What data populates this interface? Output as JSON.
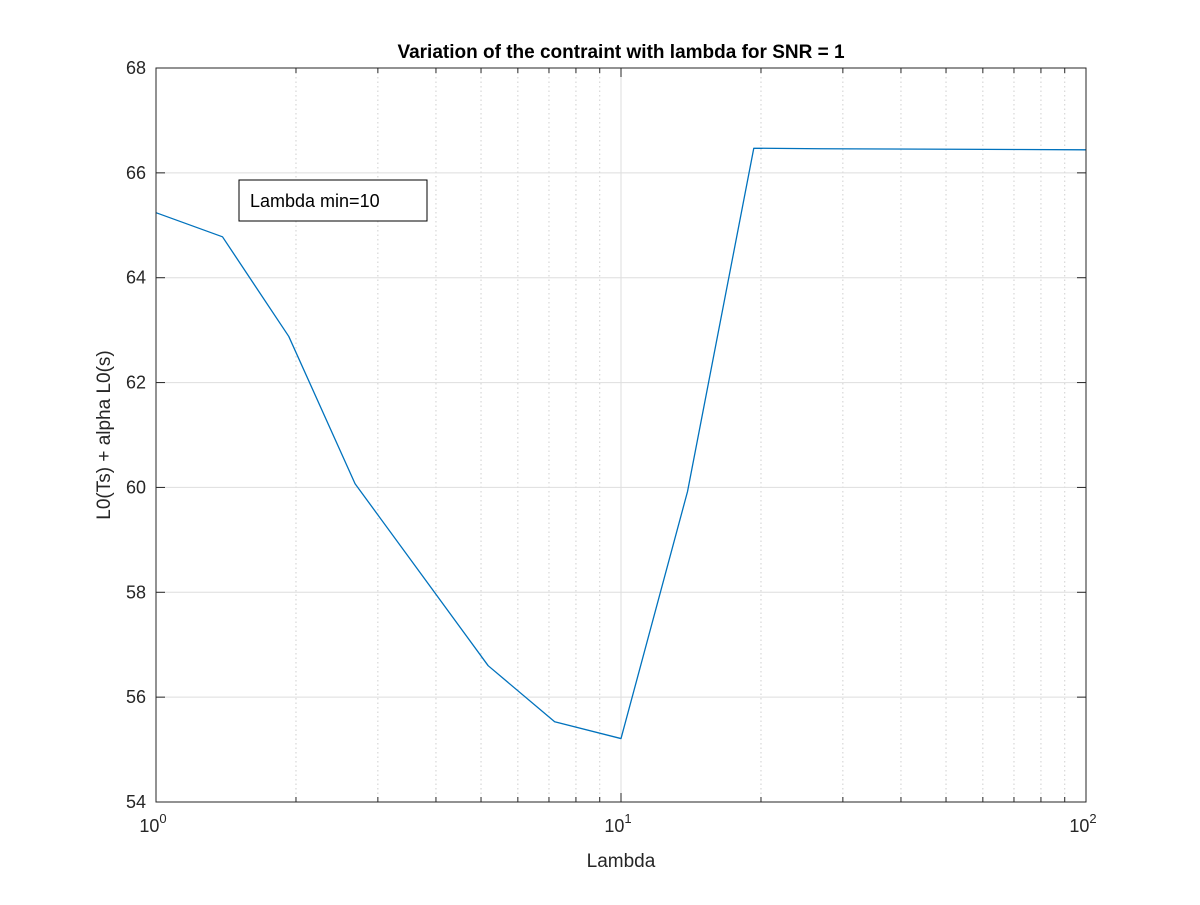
{
  "chart_data": {
    "type": "line",
    "title": "Variation of the contraint with lambda for SNR = 1",
    "xlabel": "Lambda",
    "ylabel": "L0(Ts) + alpha L0(s)",
    "xscale": "log",
    "xlim": [
      1,
      100
    ],
    "ylim": [
      54,
      68
    ],
    "grid": "on (major and minor on x)",
    "x_ticks": [
      {
        "base": "10",
        "exp": "0"
      },
      {
        "base": "10",
        "exp": "1"
      },
      {
        "base": "10",
        "exp": "2"
      }
    ],
    "y_ticks": [
      "54",
      "56",
      "58",
      "60",
      "62",
      "64",
      "66",
      "68"
    ],
    "y_tick_values": [
      54,
      56,
      58,
      60,
      62,
      64,
      66,
      68
    ],
    "series": [
      {
        "color": "#0072BD",
        "x": [
          1,
          1.39,
          1.93,
          2.68,
          3.73,
          5.18,
          7.2,
          10,
          13.9,
          19.3,
          26.8,
          37.3,
          51.8,
          72,
          100
        ],
        "y": [
          65.24,
          64.78,
          62.88,
          60.07,
          58.33,
          56.6,
          55.53,
          55.21,
          59.92,
          66.47,
          66.46,
          66.455,
          66.45,
          66.445,
          66.44
        ]
      }
    ],
    "annotation": {
      "text": "Lambda min=10"
    }
  }
}
